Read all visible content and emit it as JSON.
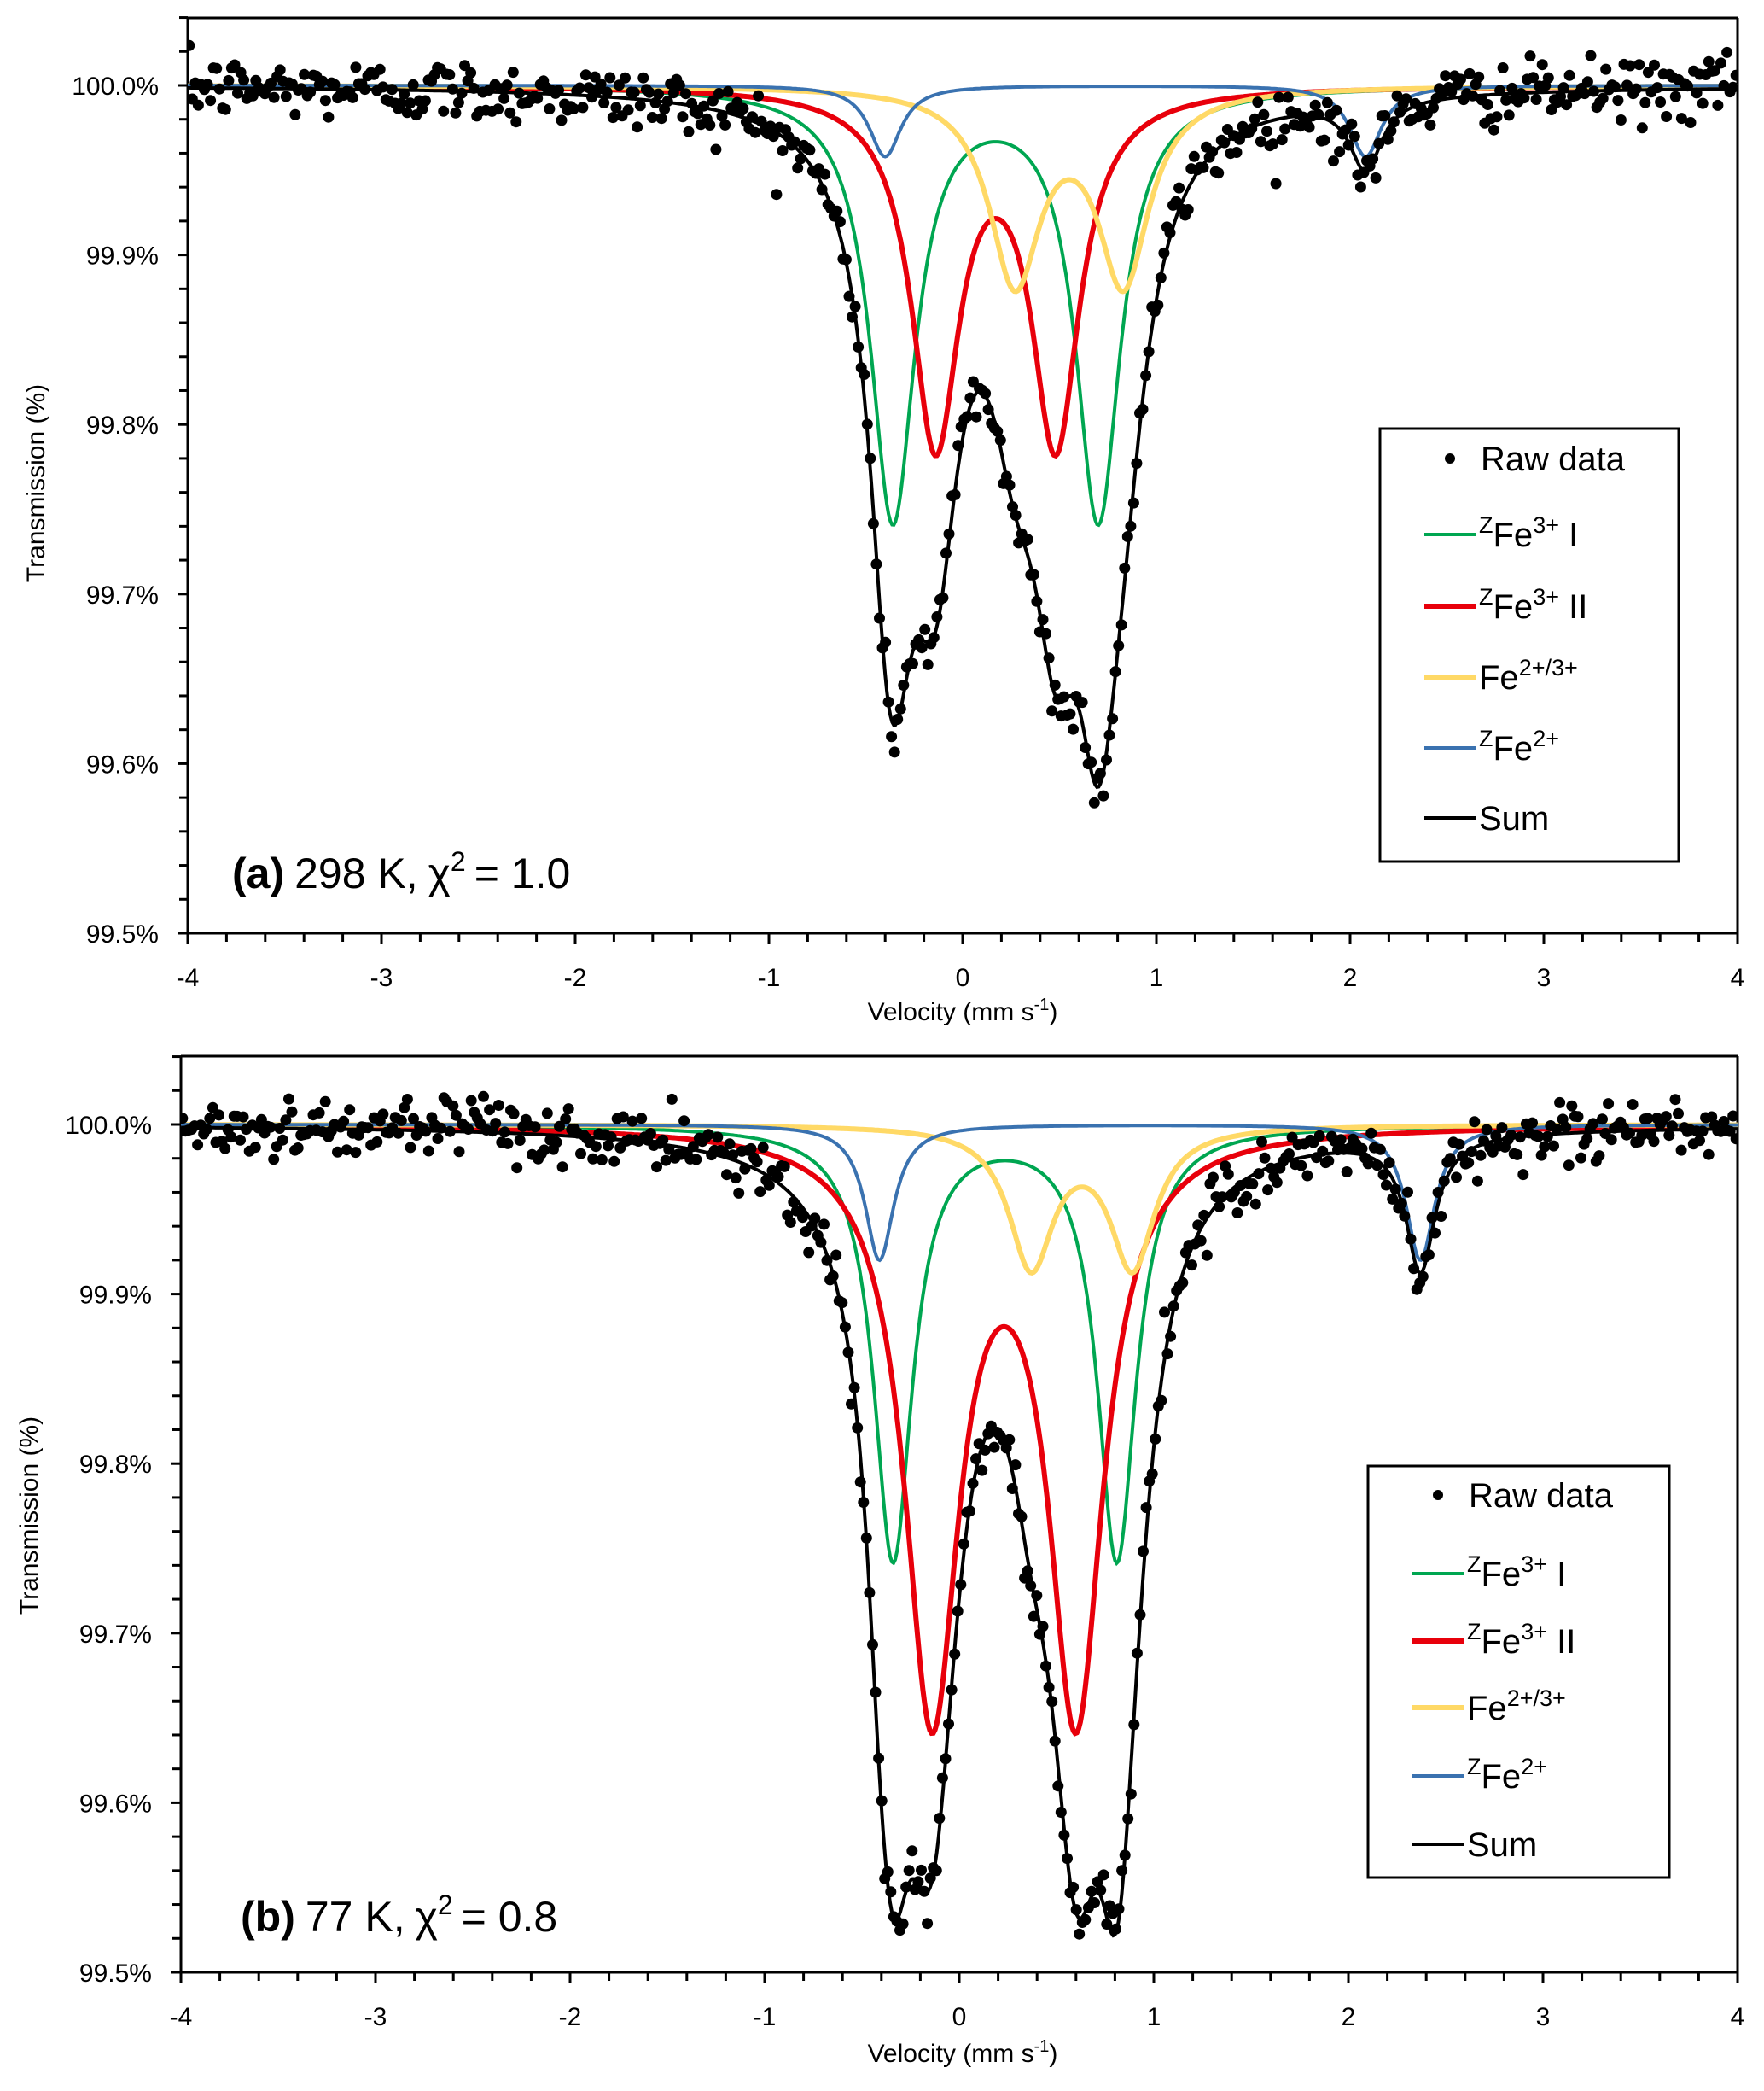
{
  "chart_data": [
    {
      "type": "line",
      "panel_label": "(a)",
      "annotation": {
        "label": "(a)",
        "temperature": "298 K,",
        "chi": "χ",
        "chi_sup": "2",
        "chi_value": "= 1.0"
      },
      "xlabel": "Velocity (mm s",
      "xlabel_sup": "-1",
      "xlabel_end": ")",
      "ylabel": "Transmission (%)",
      "xlim": [
        -4,
        4
      ],
      "ylim": [
        99.5,
        100.04
      ],
      "x_ticks": [
        "-4",
        "-3",
        "-2",
        "-1",
        "0",
        "1",
        "2",
        "3",
        "4"
      ],
      "y_ticks": [
        "99.5%",
        "99.6%",
        "99.7%",
        "99.8%",
        "99.9%",
        "100.0%"
      ],
      "legend_position": "right",
      "legend": [
        {
          "key": "raw",
          "base": "Raw data",
          "pre": "",
          "sup": "",
          "post": "",
          "color": "#000000",
          "marker": "dot"
        },
        {
          "key": "fe3_I",
          "pre": "Z",
          "base": "Fe",
          "sup": "3+",
          "post": " I",
          "color": "#00a651",
          "marker": "line"
        },
        {
          "key": "fe3_II",
          "pre": "Z",
          "base": "Fe",
          "sup": "3+",
          "post": " II",
          "color": "#e8000b",
          "marker": "line"
        },
        {
          "key": "fe23",
          "pre": "",
          "base": "Fe",
          "sup": "2+/3+",
          "post": "",
          "color": "#ffd966",
          "marker": "line"
        },
        {
          "key": "fe2",
          "pre": "Z",
          "base": "Fe",
          "sup": "2+",
          "post": "",
          "color": "#3a72b0",
          "marker": "line"
        },
        {
          "key": "sum",
          "base": "Sum",
          "pre": "",
          "sup": "",
          "post": "",
          "color": "#000000",
          "marker": "line"
        }
      ],
      "series": [
        {
          "name": "ZFe3+ I",
          "key": "fe3_I",
          "color": "#00a651",
          "peaks": [
            {
              "center": -0.36,
              "depth": 0.255,
              "fwhm": 0.28
            },
            {
              "center": 0.7,
              "depth": 0.255,
              "fwhm": 0.28
            }
          ]
        },
        {
          "name": "ZFe3+ II",
          "key": "fe3_II",
          "color": "#e8000b",
          "peaks": [
            {
              "center": -0.14,
              "depth": 0.207,
              "fwhm": 0.3
            },
            {
              "center": 0.48,
              "depth": 0.207,
              "fwhm": 0.3
            }
          ]
        },
        {
          "name": "Fe2+/3+",
          "key": "fe23",
          "color": "#ffd966",
          "peaks": [
            {
              "center": 0.27,
              "depth": 0.113,
              "fwhm": 0.32
            },
            {
              "center": 0.83,
              "depth": 0.113,
              "fwhm": 0.32
            }
          ]
        },
        {
          "name": "ZFe2+",
          "key": "fe2",
          "color": "#3a72b0",
          "peaks": [
            {
              "center": -0.4,
              "depth": 0.042,
              "fwhm": 0.2
            },
            {
              "center": 2.08,
              "depth": 0.042,
              "fwhm": 0.2
            }
          ]
        }
      ],
      "sum_min": [
        {
          "x": -0.37,
          "y": 99.64
        },
        {
          "x": 0.71,
          "y": 99.617
        }
      ],
      "raw_data": {
        "n_points": 512,
        "noise_sd": 0.009
      }
    },
    {
      "type": "line",
      "panel_label": "(b)",
      "annotation": {
        "label": "(b)",
        "temperature": "77 K,",
        "chi": "χ",
        "chi_sup": "2",
        "chi_value": "= 0.8"
      },
      "xlabel": "Velocity (mm s",
      "xlabel_sup": "-1",
      "xlabel_end": ")",
      "ylabel": "Transmission (%)",
      "xlim": [
        -4,
        4
      ],
      "ylim": [
        99.5,
        100.04
      ],
      "x_ticks": [
        "-4",
        "-3",
        "-2",
        "-1",
        "0",
        "1",
        "2",
        "3",
        "4"
      ],
      "y_ticks": [
        "99.5%",
        "99.6%",
        "99.7%",
        "99.8%",
        "99.9%",
        "100.0%"
      ],
      "legend_position": "right",
      "legend": [
        {
          "key": "raw",
          "base": "Raw data",
          "pre": "",
          "sup": "",
          "post": "",
          "color": "#000000",
          "marker": "dot"
        },
        {
          "key": "fe3_I",
          "pre": "Z",
          "base": "Fe",
          "sup": "3+",
          "post": " I",
          "color": "#00a651",
          "marker": "line"
        },
        {
          "key": "fe3_II",
          "pre": "Z",
          "base": "Fe",
          "sup": "3+",
          "post": " II",
          "color": "#e8000b",
          "marker": "line"
        },
        {
          "key": "fe23",
          "pre": "",
          "base": "Fe",
          "sup": "2+/3+",
          "post": "",
          "color": "#ffd966",
          "marker": "line"
        },
        {
          "key": "fe2",
          "pre": "Z",
          "base": "Fe",
          "sup": "2+",
          "post": "",
          "color": "#3a72b0",
          "marker": "line"
        },
        {
          "key": "sum",
          "base": "Sum",
          "pre": "",
          "sup": "",
          "post": "",
          "color": "#000000",
          "marker": "line"
        }
      ],
      "series": [
        {
          "name": "ZFe3+ I",
          "key": "fe3_I",
          "color": "#00a651",
          "peaks": [
            {
              "center": -0.34,
              "depth": 0.256,
              "fwhm": 0.24
            },
            {
              "center": 0.81,
              "depth": 0.256,
              "fwhm": 0.24
            }
          ]
        },
        {
          "name": "ZFe3+ II",
          "key": "fe3_II",
          "color": "#e8000b",
          "peaks": [
            {
              "center": -0.14,
              "depth": 0.342,
              "fwhm": 0.34
            },
            {
              "center": 0.6,
              "depth": 0.342,
              "fwhm": 0.34
            }
          ]
        },
        {
          "name": "Fe2+/3+",
          "key": "fe23",
          "color": "#ffd966",
          "peaks": [
            {
              "center": 0.37,
              "depth": 0.082,
              "fwhm": 0.28
            },
            {
              "center": 0.89,
              "depth": 0.082,
              "fwhm": 0.28
            }
          ]
        },
        {
          "name": "ZFe2+",
          "key": "fe2",
          "color": "#3a72b0",
          "peaks": [
            {
              "center": -0.41,
              "depth": 0.08,
              "fwhm": 0.18
            },
            {
              "center": 2.37,
              "depth": 0.08,
              "fwhm": 0.18
            }
          ]
        }
      ],
      "sum_min": [
        {
          "x": -0.27,
          "y": 99.545
        },
        {
          "x": 0.62,
          "y": 99.545
        }
      ],
      "raw_data": {
        "n_points": 512,
        "noise_sd": 0.009
      }
    }
  ]
}
